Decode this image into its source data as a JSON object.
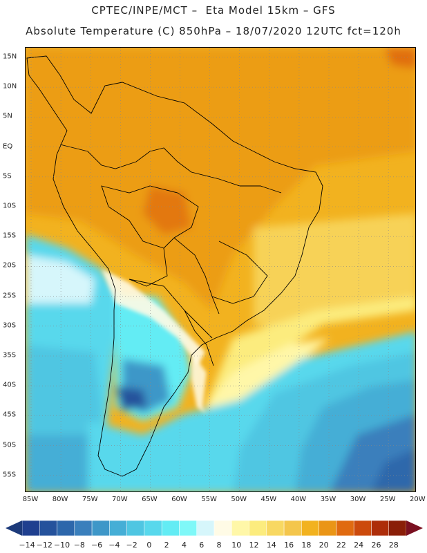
{
  "header": {
    "title_line1": "CPTEC/INPE/MCT –  Eta Model 15km – GFS",
    "title_line2": "Absolute Temperature (C) 850hPa – 18/07/2020 12UTC fct=120h"
  },
  "axes": {
    "lat_labels": [
      "15N",
      "10N",
      "5N",
      "EQ",
      "5S",
      "10S",
      "15S",
      "20S",
      "25S",
      "30S",
      "35S",
      "40S",
      "45S",
      "50S",
      "55S"
    ],
    "lon_labels": [
      "85W",
      "80W",
      "75W",
      "70W",
      "65W",
      "60W",
      "55W",
      "50W",
      "45W",
      "40W",
      "35W",
      "30W",
      "25W",
      "20W"
    ]
  },
  "colorbar": {
    "labels": [
      "-14",
      "-12",
      "-10",
      "-8",
      "-6",
      "-4",
      "-2",
      "0",
      "2",
      "4",
      "6",
      "8",
      "10",
      "12",
      "14",
      "16",
      "18",
      "20",
      "22",
      "24",
      "26",
      "28"
    ],
    "colors": [
      "#1f3f8f",
      "#25529c",
      "#2d67ab",
      "#3a7fbc",
      "#3e97c8",
      "#45aed6",
      "#4fc6e2",
      "#58d8ec",
      "#63ecf4",
      "#7ff8f8",
      "#d6f6fb",
      "#fffbe6",
      "#fff7a8",
      "#fcec7e",
      "#f8d862",
      "#f4c64c",
      "#f2b21f",
      "#ea9516",
      "#e06a10",
      "#cc4a0c",
      "#ad2d0a",
      "#8a1e08"
    ],
    "low_arrow_color": "#1c3a7a",
    "high_arrow_color": "#7a1020"
  }
}
